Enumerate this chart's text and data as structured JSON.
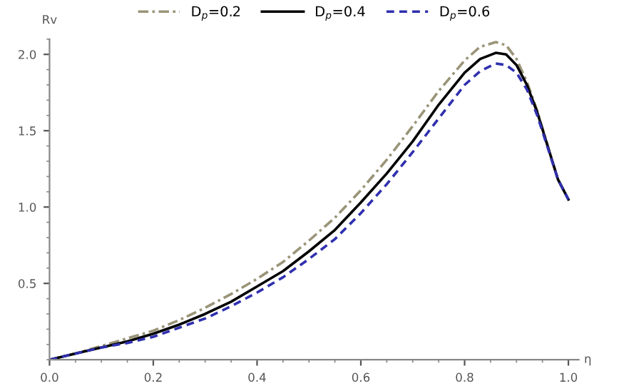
{
  "chart_data": {
    "type": "line",
    "xlabel": "η",
    "ylabel": "Rv",
    "x": [
      0,
      0.05,
      0.1,
      0.15,
      0.2,
      0.25,
      0.3,
      0.35,
      0.4,
      0.45,
      0.5,
      0.55,
      0.6,
      0.65,
      0.7,
      0.75,
      0.8,
      0.83,
      0.86,
      0.88,
      0.9,
      0.92,
      0.94,
      0.96,
      0.98,
      1.0
    ],
    "series": [
      {
        "name": "D$_{p}$=0.2",
        "color": "#9a9478",
        "line_style": "dashdot",
        "values": [
          0,
          0.04,
          0.09,
          0.14,
          0.19,
          0.26,
          0.34,
          0.43,
          0.53,
          0.64,
          0.78,
          0.93,
          1.11,
          1.31,
          1.53,
          1.76,
          1.96,
          2.05,
          2.08,
          2.06,
          1.97,
          1.82,
          1.63,
          1.4,
          1.18,
          1.05
        ]
      },
      {
        "name": "D$_{p}$=0.4",
        "color": "#000000",
        "line_style": "solid",
        "values": [
          0,
          0.04,
          0.08,
          0.12,
          0.17,
          0.23,
          0.3,
          0.38,
          0.48,
          0.58,
          0.71,
          0.85,
          1.03,
          1.22,
          1.43,
          1.67,
          1.88,
          1.97,
          2.01,
          2.0,
          1.93,
          1.8,
          1.62,
          1.4,
          1.18,
          1.05
        ]
      },
      {
        "name": "D$_{p}$=0.6",
        "color": "#3030b0",
        "line_style": "dashed",
        "values": [
          0,
          0.04,
          0.08,
          0.11,
          0.15,
          0.21,
          0.27,
          0.35,
          0.44,
          0.54,
          0.66,
          0.79,
          0.96,
          1.15,
          1.36,
          1.58,
          1.8,
          1.89,
          1.94,
          1.93,
          1.88,
          1.77,
          1.6,
          1.39,
          1.18,
          1.05
        ]
      }
    ],
    "xlim": [
      0,
      1.02
    ],
    "ylim": [
      0,
      2.1
    ],
    "xticks": [
      {
        "value": 0,
        "label": "0.0"
      },
      0.2,
      0.4,
      0.6,
      0.8,
      {
        "value": 1,
        "label": "1.0"
      }
    ],
    "yticks": [
      0.5,
      {
        "value": 1,
        "label": "1.0"
      },
      1.5,
      {
        "value": 2,
        "label": "2.0"
      }
    ],
    "grid": false,
    "legend": "top"
  }
}
